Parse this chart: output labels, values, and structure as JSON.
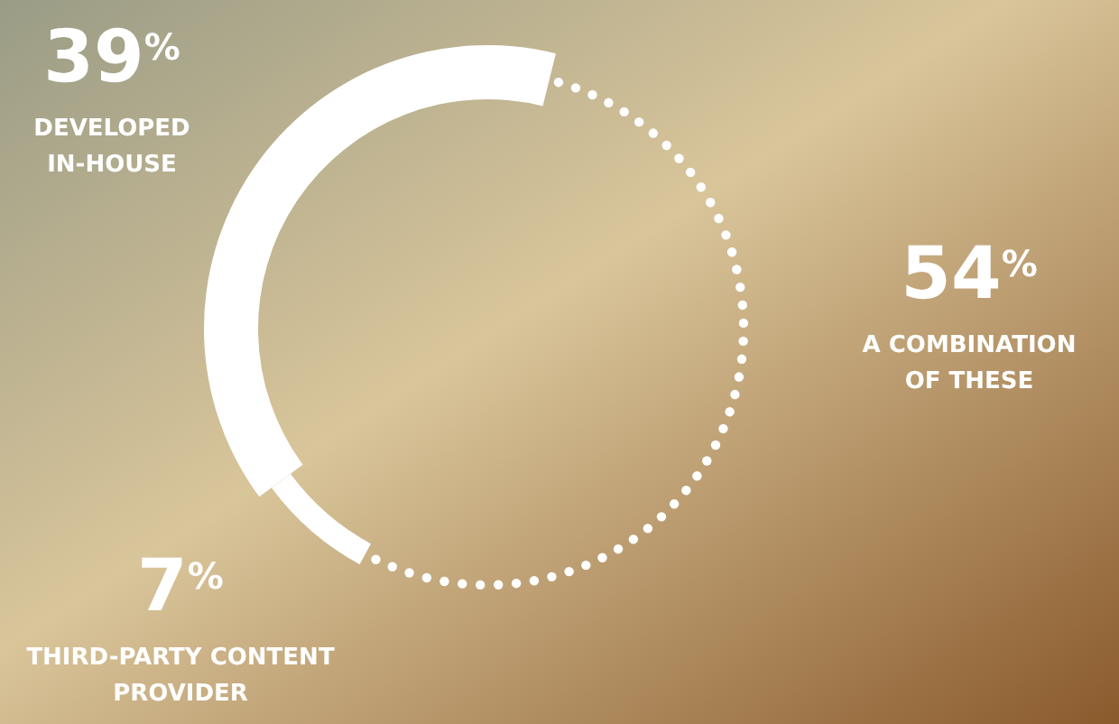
{
  "chart_data": {
    "type": "donut",
    "categories": [
      "DEVELOPED IN-HOUSE",
      "THIRD-PARTY CONTENT PROVIDER",
      "A COMBINATION OF THESE"
    ],
    "values": [
      39,
      7,
      54
    ],
    "value_labels": [
      "39$^{%}$",
      "7$^{%}$",
      "54$^{%}$"
    ],
    "colors": [
      "#ffffff",
      "#ffffff",
      "#ffffff"
    ]
  }
}
